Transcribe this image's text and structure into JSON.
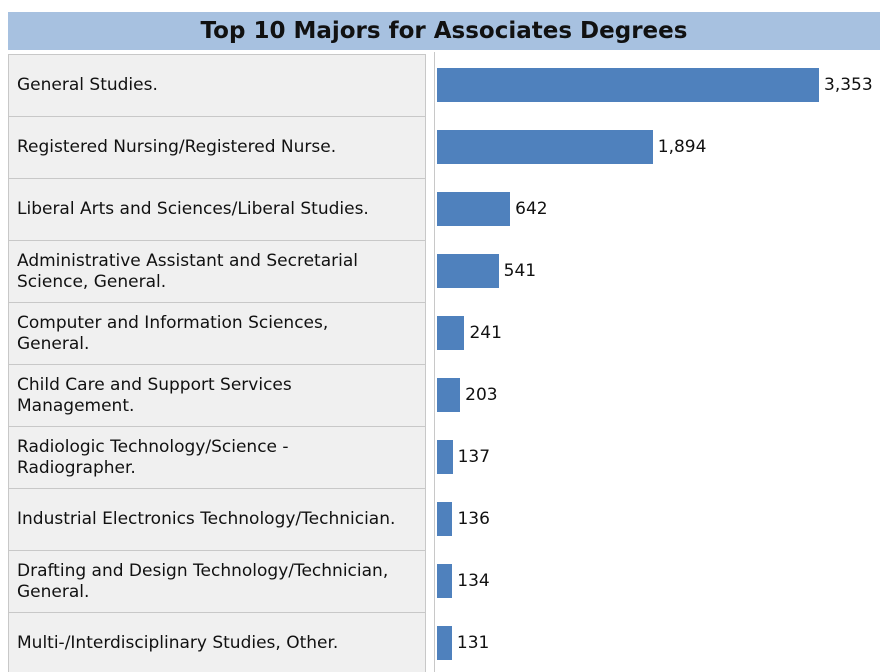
{
  "chart_data": {
    "type": "bar",
    "orientation": "horizontal",
    "title": "Top 10 Majors for Associates Degrees",
    "categories": [
      "General Studies.",
      "Registered Nursing/Registered Nurse.",
      "Liberal Arts and Sciences/Liberal Studies.",
      "Administrative Assistant and Secretarial Science, General.",
      "Computer and Information Sciences, General.",
      "Child Care and Support Services Management.",
      "Radiologic Technology/Science - Radiographer.",
      "Industrial Electronics Technology/Technician.",
      "Drafting and Design Technology/Technician, General.",
      "Multi-/Interdisciplinary Studies, Other."
    ],
    "values": [
      3353,
      1894,
      642,
      541,
      241,
      203,
      137,
      136,
      134,
      131
    ],
    "value_labels": [
      "3,353",
      "1,894",
      "642",
      "541",
      "241",
      "203",
      "137",
      "136",
      "134",
      "131"
    ],
    "color": "#4f81bd"
  }
}
